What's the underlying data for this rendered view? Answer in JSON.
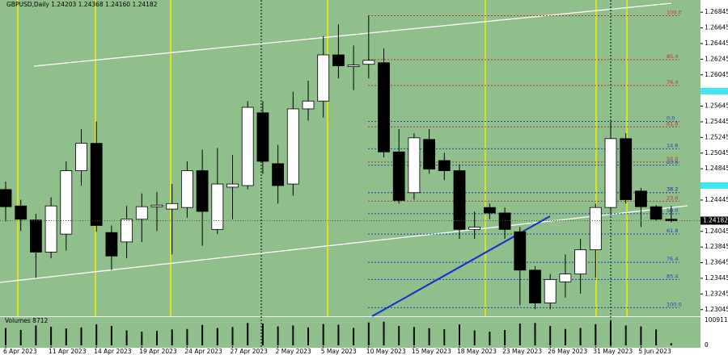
{
  "chart_data": {
    "type": "candlestick",
    "title": "GBPUSD,Daily  1.24203 1.24368 1.24160 1.24182",
    "categories": [
      "6 Apr 2023",
      null,
      null,
      "11 Apr 2023",
      null,
      null,
      "14 Apr 2023",
      null,
      null,
      "19 Apr 2023",
      null,
      null,
      "24 Apr 2023",
      null,
      null,
      "27 Apr 2023",
      null,
      null,
      "2 May 2023",
      null,
      null,
      "5 May 2023",
      null,
      null,
      "10 May 2023",
      null,
      null,
      "15 May 2023",
      null,
      null,
      "18 May 2023",
      null,
      null,
      "23 May 2023",
      null,
      null,
      "26 May 2023",
      null,
      null,
      "31 May 2023",
      null,
      null,
      "5 Jun 2023",
      null,
      null
    ],
    "open": [
      1.2458,
      1.2437,
      1.2419,
      1.2378,
      1.2401,
      1.2482,
      1.2517,
      1.2403,
      1.2391,
      1.242,
      1.2436,
      1.2433,
      1.2435,
      1.2482,
      1.2407,
      1.2461,
      1.2463,
      1.2556,
      1.2491,
      1.2465,
      1.2561,
      1.2571,
      1.263,
      1.2615,
      1.2618,
      1.262,
      1.2506,
      1.2454,
      1.2522,
      1.2495,
      1.2482,
      1.2407,
      1.2435,
      1.2428,
      1.2404,
      1.2355,
      1.2313,
      1.234,
      1.235,
      1.2381,
      1.2435,
      1.2523,
      1.2456,
      1.2436,
      1.242
    ],
    "high": [
      1.2468,
      1.2445,
      1.2427,
      1.2448,
      1.2494,
      1.2535,
      1.2545,
      1.2412,
      1.2437,
      1.2453,
      1.2455,
      1.2465,
      1.2494,
      1.2509,
      1.2511,
      1.2502,
      1.2571,
      1.2571,
      1.2515,
      1.2583,
      1.2597,
      1.2654,
      1.2669,
      1.2642,
      1.268,
      1.2638,
      1.2535,
      1.253,
      1.2535,
      1.2505,
      1.249,
      1.243,
      1.244,
      1.2435,
      1.241,
      1.236,
      1.235,
      1.2375,
      1.2395,
      1.244,
      1.2545,
      1.253,
      1.246,
      1.2438,
      1.2437
    ],
    "low": [
      1.2417,
      1.2405,
      1.2345,
      1.237,
      1.238,
      1.2463,
      1.2404,
      1.2355,
      1.237,
      1.2391,
      1.2405,
      1.2375,
      1.2422,
      1.2386,
      1.2401,
      1.242,
      1.2458,
      1.2478,
      1.244,
      1.245,
      1.2546,
      1.255,
      1.26,
      1.2585,
      1.26,
      1.2499,
      1.244,
      1.2445,
      1.2478,
      1.247,
      1.2395,
      1.2395,
      1.242,
      1.2395,
      1.231,
      1.2305,
      1.2305,
      1.232,
      1.2325,
      1.2345,
      1.2425,
      1.244,
      1.241,
      1.2418,
      1.2416
    ],
    "close": [
      1.2436,
      1.242,
      1.2378,
      1.2437,
      1.2482,
      1.2517,
      1.2412,
      1.2373,
      1.242,
      1.2436,
      1.2438,
      1.244,
      1.2482,
      1.243,
      1.2465,
      1.2465,
      1.2563,
      1.2494,
      1.2463,
      1.2561,
      1.2571,
      1.263,
      1.2616,
      1.2617,
      1.2623,
      1.2506,
      1.2444,
      1.2524,
      1.2484,
      1.2482,
      1.2407,
      1.241,
      1.2428,
      1.2407,
      1.2355,
      1.2313,
      1.2343,
      1.235,
      1.2381,
      1.2435,
      1.2523,
      1.2445,
      1.2436,
      1.242,
      1.2418
    ],
    "up_color": "#ffffff",
    "down_color": "#000000",
    "ylim": [
      1.2296,
      1.2696
    ],
    "yticks": [
      1.26845,
      1.26645,
      1.26445,
      1.26245,
      1.26045,
      1.25645,
      1.25445,
      1.25245,
      1.25045,
      1.24845,
      1.24445,
      1.24045,
      1.23845,
      1.23645,
      1.23445,
      1.23245,
      1.23045
    ],
    "current": 1.24182,
    "fib_red": [
      {
        "value": 1.268,
        "label": "100.0"
      },
      {
        "value": 1.2624,
        "label": "85.4"
      },
      {
        "value": 1.2591,
        "label": "76.4"
      },
      {
        "value": 1.2538,
        "label": "61.8"
      },
      {
        "value": 1.2493,
        "label": "50.0"
      },
      {
        "value": 1.2454,
        "label": "38.2"
      },
      {
        "value": 1.2443,
        "label": "23.6"
      }
    ],
    "fib_blue": [
      {
        "value": 1.2545,
        "label": "0.0"
      },
      {
        "value": 1.251,
        "label": "14.6"
      },
      {
        "value": 1.2489,
        "label": "23.6"
      },
      {
        "value": 1.2454,
        "label": "38.2"
      },
      {
        "value": 1.2427,
        "label": "50.0"
      },
      {
        "value": 1.2401,
        "label": "61.8"
      },
      {
        "value": 1.2365,
        "label": "76.4"
      },
      {
        "value": 1.2343,
        "label": "85.4"
      },
      {
        "value": 1.2307,
        "label": "100.0"
      }
    ],
    "volume_label": "Volumes 8712",
    "volumes": [
      70000,
      62000,
      80000,
      75000,
      68000,
      72000,
      85000,
      78000,
      60000,
      55000,
      58000,
      64000,
      66000,
      82000,
      70000,
      74000,
      90000,
      88000,
      76000,
      80000,
      72000,
      86000,
      83000,
      70000,
      92000,
      95000,
      78000,
      74000,
      69000,
      65000,
      84000,
      60000,
      55000,
      62000,
      88000,
      90000,
      78000,
      66000,
      70000,
      85000,
      98000,
      80000,
      76000,
      64000,
      8712
    ],
    "vlim": [
      0,
      100911
    ],
    "vticks": [
      100911,
      0
    ]
  }
}
